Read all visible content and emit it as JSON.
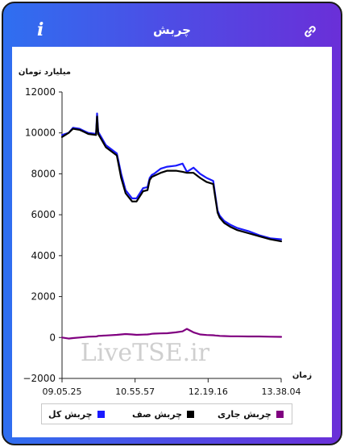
{
  "header": {
    "title": "چربش",
    "info_icon": "info-icon",
    "link_icon": "link-icon"
  },
  "chart_data": {
    "type": "line",
    "ylabel": "میلیارد تومان",
    "xlabel": "زمان",
    "ylim": [
      -2000,
      12000
    ],
    "yticks": [
      -2000,
      0,
      2000,
      4000,
      6000,
      8000,
      10000,
      12000
    ],
    "xticks": [
      "09.05.25",
      "10.55.57",
      "12.19.16",
      "13.38.04"
    ],
    "grid": false,
    "watermark": "LiveTSE.ir",
    "legend_position": "bottom",
    "x": [
      0,
      0.03,
      0.05,
      0.08,
      0.1,
      0.12,
      0.155,
      0.16,
      0.165,
      0.2,
      0.25,
      0.27,
      0.29,
      0.32,
      0.34,
      0.37,
      0.39,
      0.4,
      0.41,
      0.42,
      0.45,
      0.48,
      0.52,
      0.55,
      0.57,
      0.6,
      0.63,
      0.66,
      0.69,
      0.7,
      0.71,
      0.72,
      0.74,
      0.77,
      0.8,
      0.85,
      0.9,
      0.95,
      1.0
    ],
    "series": [
      {
        "name": "چربش کل",
        "color": "#1a1aff",
        "values": [
          9900,
          10000,
          10250,
          10200,
          10100,
          10000,
          9950,
          10950,
          10050,
          9400,
          9000,
          8000,
          7200,
          6800,
          6800,
          7300,
          7350,
          7800,
          7950,
          8000,
          8250,
          8350,
          8400,
          8500,
          8100,
          8300,
          8000,
          7800,
          7650,
          6900,
          6200,
          5950,
          5700,
          5500,
          5350,
          5200,
          5000,
          4850,
          4800
        ]
      },
      {
        "name": "چربش صف",
        "color": "#000000",
        "values": [
          9800,
          10000,
          10200,
          10150,
          10050,
          9950,
          9900,
          10800,
          9950,
          9300,
          8900,
          7800,
          7050,
          6650,
          6650,
          7150,
          7200,
          7700,
          7850,
          7900,
          8050,
          8150,
          8150,
          8100,
          8050,
          8050,
          7800,
          7600,
          7500,
          6800,
          6100,
          5850,
          5600,
          5400,
          5250,
          5100,
          4950,
          4800,
          4700
        ]
      },
      {
        "name": "چربش جاری",
        "color": "#800080",
        "values": [
          0,
          -50,
          -30,
          0,
          20,
          40,
          50,
          60,
          80,
          100,
          130,
          150,
          170,
          150,
          130,
          140,
          150,
          160,
          180,
          190,
          200,
          210,
          250,
          300,
          420,
          250,
          150,
          120,
          110,
          100,
          90,
          80,
          70,
          60,
          60,
          50,
          50,
          40,
          30
        ]
      }
    ]
  }
}
